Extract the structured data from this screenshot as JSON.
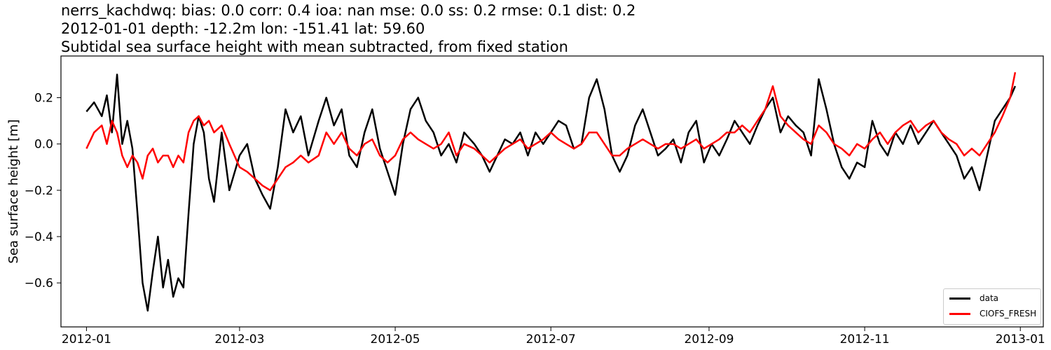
{
  "title": {
    "line1": "nerrs_kachdwq: bias: 0.0  corr: 0.4  ioa: nan  mse: 0.0  ss: 0.2  rmse: 0.1  dist: 0.2",
    "line2": "2012-01-01 depth: -12.2m lon: -151.41 lat: 59.60",
    "line3": "Subtidal sea surface height with mean subtracted, from fixed station"
  },
  "chart_data": {
    "type": "line",
    "ylabel": "Sea surface height [m]",
    "xlim": [
      "2011-12-22",
      "2013-01-10"
    ],
    "ylim": [
      -0.79,
      0.38
    ],
    "x_ticks": [
      "2012-01",
      "2012-03",
      "2012-05",
      "2012-07",
      "2012-09",
      "2012-11",
      "2013-01"
    ],
    "y_ticks": [
      -0.6,
      -0.4,
      -0.2,
      0.0,
      0.2
    ],
    "y_tick_labels": [
      "−0.6",
      "−0.4",
      "−0.2",
      "0.0",
      "0.2"
    ],
    "legend_position": "lower-right",
    "grid": false,
    "series": [
      {
        "name": "data",
        "color": "#000000",
        "points": [
          [
            "2012-01-01",
            0.14
          ],
          [
            "2012-01-04",
            0.18
          ],
          [
            "2012-01-07",
            0.12
          ],
          [
            "2012-01-09",
            0.21
          ],
          [
            "2012-01-11",
            0.05
          ],
          [
            "2012-01-13",
            0.3
          ],
          [
            "2012-01-15",
            0.0
          ],
          [
            "2012-01-17",
            0.1
          ],
          [
            "2012-01-19",
            -0.02
          ],
          [
            "2012-01-21",
            -0.3
          ],
          [
            "2012-01-23",
            -0.6
          ],
          [
            "2012-01-25",
            -0.72
          ],
          [
            "2012-01-27",
            -0.55
          ],
          [
            "2012-01-29",
            -0.4
          ],
          [
            "2012-01-31",
            -0.62
          ],
          [
            "2012-02-02",
            -0.5
          ],
          [
            "2012-02-04",
            -0.66
          ],
          [
            "2012-02-06",
            -0.58
          ],
          [
            "2012-02-08",
            -0.62
          ],
          [
            "2012-02-10",
            -0.3
          ],
          [
            "2012-02-12",
            0.0
          ],
          [
            "2012-02-14",
            0.12
          ],
          [
            "2012-02-16",
            0.05
          ],
          [
            "2012-02-18",
            -0.15
          ],
          [
            "2012-02-20",
            -0.25
          ],
          [
            "2012-02-23",
            0.05
          ],
          [
            "2012-02-26",
            -0.2
          ],
          [
            "2012-03-01",
            -0.05
          ],
          [
            "2012-03-04",
            0.0
          ],
          [
            "2012-03-07",
            -0.15
          ],
          [
            "2012-03-10",
            -0.22
          ],
          [
            "2012-03-13",
            -0.28
          ],
          [
            "2012-03-16",
            -0.1
          ],
          [
            "2012-03-19",
            0.15
          ],
          [
            "2012-03-22",
            0.05
          ],
          [
            "2012-03-25",
            0.12
          ],
          [
            "2012-03-28",
            -0.05
          ],
          [
            "2012-04-01",
            0.1
          ],
          [
            "2012-04-04",
            0.2
          ],
          [
            "2012-04-07",
            0.08
          ],
          [
            "2012-04-10",
            0.15
          ],
          [
            "2012-04-13",
            -0.05
          ],
          [
            "2012-04-16",
            -0.1
          ],
          [
            "2012-04-19",
            0.05
          ],
          [
            "2012-04-22",
            0.15
          ],
          [
            "2012-04-25",
            -0.02
          ],
          [
            "2012-04-28",
            -0.12
          ],
          [
            "2012-05-01",
            -0.22
          ],
          [
            "2012-05-04",
            0.0
          ],
          [
            "2012-05-07",
            0.15
          ],
          [
            "2012-05-10",
            0.2
          ],
          [
            "2012-05-13",
            0.1
          ],
          [
            "2012-05-16",
            0.05
          ],
          [
            "2012-05-19",
            -0.05
          ],
          [
            "2012-05-22",
            0.0
          ],
          [
            "2012-05-25",
            -0.08
          ],
          [
            "2012-05-28",
            0.05
          ],
          [
            "2012-06-01",
            0.0
          ],
          [
            "2012-06-04",
            -0.05
          ],
          [
            "2012-06-07",
            -0.12
          ],
          [
            "2012-06-10",
            -0.05
          ],
          [
            "2012-06-13",
            0.02
          ],
          [
            "2012-06-16",
            0.0
          ],
          [
            "2012-06-19",
            0.05
          ],
          [
            "2012-06-22",
            -0.05
          ],
          [
            "2012-06-25",
            0.05
          ],
          [
            "2012-06-28",
            0.0
          ],
          [
            "2012-07-01",
            0.05
          ],
          [
            "2012-07-04",
            0.1
          ],
          [
            "2012-07-07",
            0.08
          ],
          [
            "2012-07-10",
            -0.02
          ],
          [
            "2012-07-13",
            0.0
          ],
          [
            "2012-07-16",
            0.2
          ],
          [
            "2012-07-19",
            0.28
          ],
          [
            "2012-07-22",
            0.15
          ],
          [
            "2012-07-25",
            -0.05
          ],
          [
            "2012-07-28",
            -0.12
          ],
          [
            "2012-07-31",
            -0.05
          ],
          [
            "2012-08-03",
            0.08
          ],
          [
            "2012-08-06",
            0.15
          ],
          [
            "2012-08-09",
            0.05
          ],
          [
            "2012-08-12",
            -0.05
          ],
          [
            "2012-08-15",
            -0.02
          ],
          [
            "2012-08-18",
            0.02
          ],
          [
            "2012-08-21",
            -0.08
          ],
          [
            "2012-08-24",
            0.05
          ],
          [
            "2012-08-27",
            0.1
          ],
          [
            "2012-08-30",
            -0.08
          ],
          [
            "2012-09-02",
            0.0
          ],
          [
            "2012-09-05",
            -0.05
          ],
          [
            "2012-09-08",
            0.02
          ],
          [
            "2012-09-11",
            0.1
          ],
          [
            "2012-09-14",
            0.05
          ],
          [
            "2012-09-17",
            0.0
          ],
          [
            "2012-09-20",
            0.08
          ],
          [
            "2012-09-23",
            0.15
          ],
          [
            "2012-09-26",
            0.2
          ],
          [
            "2012-09-29",
            0.05
          ],
          [
            "2012-10-02",
            0.12
          ],
          [
            "2012-10-05",
            0.08
          ],
          [
            "2012-10-08",
            0.05
          ],
          [
            "2012-10-11",
            -0.05
          ],
          [
            "2012-10-14",
            0.28
          ],
          [
            "2012-10-17",
            0.15
          ],
          [
            "2012-10-20",
            0.0
          ],
          [
            "2012-10-23",
            -0.1
          ],
          [
            "2012-10-26",
            -0.15
          ],
          [
            "2012-10-29",
            -0.08
          ],
          [
            "2012-11-01",
            -0.1
          ],
          [
            "2012-11-04",
            0.1
          ],
          [
            "2012-11-07",
            0.0
          ],
          [
            "2012-11-10",
            -0.05
          ],
          [
            "2012-11-13",
            0.05
          ],
          [
            "2012-11-16",
            0.0
          ],
          [
            "2012-11-19",
            0.08
          ],
          [
            "2012-11-22",
            0.0
          ],
          [
            "2012-11-25",
            0.05
          ],
          [
            "2012-11-28",
            0.1
          ],
          [
            "2012-12-01",
            0.05
          ],
          [
            "2012-12-04",
            0.0
          ],
          [
            "2012-12-07",
            -0.05
          ],
          [
            "2012-12-10",
            -0.15
          ],
          [
            "2012-12-13",
            -0.1
          ],
          [
            "2012-12-16",
            -0.2
          ],
          [
            "2012-12-19",
            -0.05
          ],
          [
            "2012-12-22",
            0.1
          ],
          [
            "2012-12-25",
            0.15
          ],
          [
            "2012-12-28",
            0.2
          ],
          [
            "2012-12-30",
            0.25
          ]
        ]
      },
      {
        "name": "CIOFS_FRESH",
        "color": "#ff0000",
        "points": [
          [
            "2012-01-01",
            -0.02
          ],
          [
            "2012-01-04",
            0.05
          ],
          [
            "2012-01-07",
            0.08
          ],
          [
            "2012-01-09",
            0.0
          ],
          [
            "2012-01-11",
            0.1
          ],
          [
            "2012-01-13",
            0.05
          ],
          [
            "2012-01-15",
            -0.05
          ],
          [
            "2012-01-17",
            -0.1
          ],
          [
            "2012-01-19",
            -0.05
          ],
          [
            "2012-01-21",
            -0.08
          ],
          [
            "2012-01-23",
            -0.15
          ],
          [
            "2012-01-25",
            -0.05
          ],
          [
            "2012-01-27",
            -0.02
          ],
          [
            "2012-01-29",
            -0.08
          ],
          [
            "2012-01-31",
            -0.05
          ],
          [
            "2012-02-02",
            -0.05
          ],
          [
            "2012-02-04",
            -0.1
          ],
          [
            "2012-02-06",
            -0.05
          ],
          [
            "2012-02-08",
            -0.08
          ],
          [
            "2012-02-10",
            0.05
          ],
          [
            "2012-02-12",
            0.1
          ],
          [
            "2012-02-14",
            0.12
          ],
          [
            "2012-02-16",
            0.08
          ],
          [
            "2012-02-18",
            0.1
          ],
          [
            "2012-02-20",
            0.05
          ],
          [
            "2012-02-23",
            0.08
          ],
          [
            "2012-02-26",
            0.0
          ],
          [
            "2012-03-01",
            -0.1
          ],
          [
            "2012-03-04",
            -0.12
          ],
          [
            "2012-03-07",
            -0.15
          ],
          [
            "2012-03-10",
            -0.18
          ],
          [
            "2012-03-13",
            -0.2
          ],
          [
            "2012-03-16",
            -0.15
          ],
          [
            "2012-03-19",
            -0.1
          ],
          [
            "2012-03-22",
            -0.08
          ],
          [
            "2012-03-25",
            -0.05
          ],
          [
            "2012-03-28",
            -0.08
          ],
          [
            "2012-04-01",
            -0.05
          ],
          [
            "2012-04-04",
            0.05
          ],
          [
            "2012-04-07",
            0.0
          ],
          [
            "2012-04-10",
            0.05
          ],
          [
            "2012-04-13",
            -0.02
          ],
          [
            "2012-04-16",
            -0.05
          ],
          [
            "2012-04-19",
            0.0
          ],
          [
            "2012-04-22",
            0.02
          ],
          [
            "2012-04-25",
            -0.05
          ],
          [
            "2012-04-28",
            -0.08
          ],
          [
            "2012-05-01",
            -0.05
          ],
          [
            "2012-05-04",
            0.02
          ],
          [
            "2012-05-07",
            0.05
          ],
          [
            "2012-05-10",
            0.02
          ],
          [
            "2012-05-13",
            0.0
          ],
          [
            "2012-05-16",
            -0.02
          ],
          [
            "2012-05-19",
            0.0
          ],
          [
            "2012-05-22",
            0.05
          ],
          [
            "2012-05-25",
            -0.05
          ],
          [
            "2012-05-28",
            0.0
          ],
          [
            "2012-06-01",
            -0.02
          ],
          [
            "2012-06-04",
            -0.05
          ],
          [
            "2012-06-07",
            -0.08
          ],
          [
            "2012-06-10",
            -0.05
          ],
          [
            "2012-06-13",
            -0.02
          ],
          [
            "2012-06-16",
            0.0
          ],
          [
            "2012-06-19",
            0.02
          ],
          [
            "2012-06-22",
            -0.02
          ],
          [
            "2012-06-25",
            0.0
          ],
          [
            "2012-06-28",
            0.02
          ],
          [
            "2012-07-01",
            0.05
          ],
          [
            "2012-07-04",
            0.02
          ],
          [
            "2012-07-07",
            0.0
          ],
          [
            "2012-07-10",
            -0.02
          ],
          [
            "2012-07-13",
            0.0
          ],
          [
            "2012-07-16",
            0.05
          ],
          [
            "2012-07-19",
            0.05
          ],
          [
            "2012-07-22",
            0.0
          ],
          [
            "2012-07-25",
            -0.05
          ],
          [
            "2012-07-28",
            -0.05
          ],
          [
            "2012-07-31",
            -0.02
          ],
          [
            "2012-08-03",
            0.0
          ],
          [
            "2012-08-06",
            0.02
          ],
          [
            "2012-08-09",
            0.0
          ],
          [
            "2012-08-12",
            -0.02
          ],
          [
            "2012-08-15",
            0.0
          ],
          [
            "2012-08-18",
            0.0
          ],
          [
            "2012-08-21",
            -0.02
          ],
          [
            "2012-08-24",
            0.0
          ],
          [
            "2012-08-27",
            0.02
          ],
          [
            "2012-08-30",
            -0.02
          ],
          [
            "2012-09-02",
            0.0
          ],
          [
            "2012-09-05",
            0.02
          ],
          [
            "2012-09-08",
            0.05
          ],
          [
            "2012-09-11",
            0.05
          ],
          [
            "2012-09-14",
            0.08
          ],
          [
            "2012-09-17",
            0.05
          ],
          [
            "2012-09-20",
            0.1
          ],
          [
            "2012-09-23",
            0.15
          ],
          [
            "2012-09-26",
            0.25
          ],
          [
            "2012-09-29",
            0.12
          ],
          [
            "2012-10-02",
            0.08
          ],
          [
            "2012-10-05",
            0.05
          ],
          [
            "2012-10-08",
            0.02
          ],
          [
            "2012-10-11",
            0.0
          ],
          [
            "2012-10-14",
            0.08
          ],
          [
            "2012-10-17",
            0.05
          ],
          [
            "2012-10-20",
            0.0
          ],
          [
            "2012-10-23",
            -0.02
          ],
          [
            "2012-10-26",
            -0.05
          ],
          [
            "2012-10-29",
            0.0
          ],
          [
            "2012-11-01",
            -0.02
          ],
          [
            "2012-11-04",
            0.02
          ],
          [
            "2012-11-07",
            0.05
          ],
          [
            "2012-11-10",
            0.0
          ],
          [
            "2012-11-13",
            0.05
          ],
          [
            "2012-11-16",
            0.08
          ],
          [
            "2012-11-19",
            0.1
          ],
          [
            "2012-11-22",
            0.05
          ],
          [
            "2012-11-25",
            0.08
          ],
          [
            "2012-11-28",
            0.1
          ],
          [
            "2012-12-01",
            0.05
          ],
          [
            "2012-12-04",
            0.02
          ],
          [
            "2012-12-07",
            0.0
          ],
          [
            "2012-12-10",
            -0.05
          ],
          [
            "2012-12-13",
            -0.02
          ],
          [
            "2012-12-16",
            -0.05
          ],
          [
            "2012-12-19",
            0.0
          ],
          [
            "2012-12-22",
            0.05
          ],
          [
            "2012-12-25",
            0.12
          ],
          [
            "2012-12-28",
            0.2
          ],
          [
            "2012-12-30",
            0.31
          ]
        ]
      }
    ]
  }
}
